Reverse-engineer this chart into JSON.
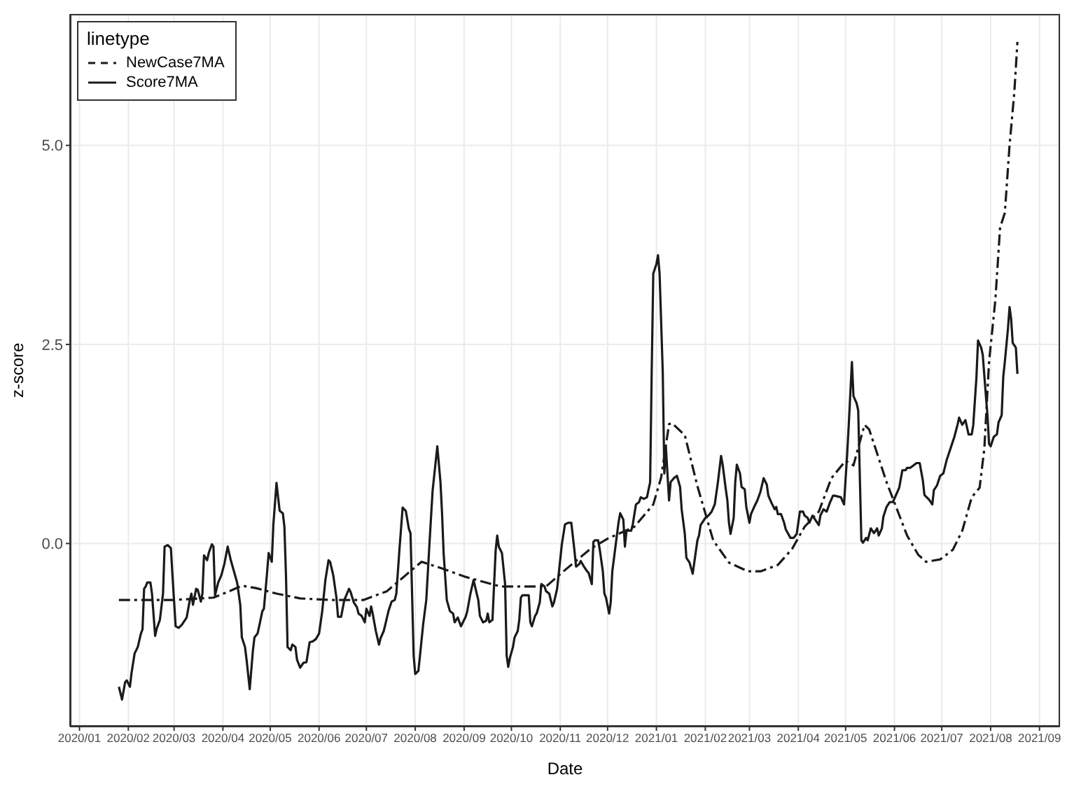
{
  "chart_data": {
    "type": "line",
    "xlabel": "Date",
    "ylabel": "z-score",
    "legend_title": "linetype",
    "legend": "top left",
    "grid": true,
    "marker": "none",
    "xlim": [
      "2019-12-26",
      "2021-09-14"
    ],
    "ylim": [
      -2.3,
      6.65
    ],
    "xticks": [
      {
        "value": "2020-01-01",
        "label": "2020/01"
      },
      {
        "value": "2020-02-01",
        "label": "2020/02"
      },
      {
        "value": "2020-03-01",
        "label": "2020/03"
      },
      {
        "value": "2020-04-01",
        "label": "2020/04"
      },
      {
        "value": "2020-05-01",
        "label": "2020/05"
      },
      {
        "value": "2020-06-01",
        "label": "2020/06"
      },
      {
        "value": "2020-07-01",
        "label": "2020/07"
      },
      {
        "value": "2020-08-01",
        "label": "2020/08"
      },
      {
        "value": "2020-09-01",
        "label": "2020/09"
      },
      {
        "value": "2020-10-01",
        "label": "2020/10"
      },
      {
        "value": "2020-11-01",
        "label": "2020/11"
      },
      {
        "value": "2020-12-01",
        "label": "2020/12"
      },
      {
        "value": "2021-01-01",
        "label": "2021/01"
      },
      {
        "value": "2021-02-01",
        "label": "2021/02"
      },
      {
        "value": "2021-03-01",
        "label": "2021/03"
      },
      {
        "value": "2021-04-01",
        "label": "2021/04"
      },
      {
        "value": "2021-05-01",
        "label": "2021/05"
      },
      {
        "value": "2021-06-01",
        "label": "2021/06"
      },
      {
        "value": "2021-07-01",
        "label": "2021/07"
      },
      {
        "value": "2021-08-01",
        "label": "2021/08"
      },
      {
        "value": "2021-09-01",
        "label": "2021/09"
      }
    ],
    "yticks": [
      {
        "value": 0,
        "label": "0.0"
      },
      {
        "value": 2.5,
        "label": "2.5"
      },
      {
        "value": 5,
        "label": "5.0"
      }
    ],
    "series": [
      {
        "name": "NewCase7MA",
        "color": "#1a1a1a",
        "line_style": "dashed",
        "x": [
          "2020-01-26",
          "2020-03-01",
          "2020-03-26",
          "2020-04-05",
          "2020-04-13",
          "2020-04-22",
          "2020-05-05",
          "2020-05-20",
          "2020-06-09",
          "2020-06-29",
          "2020-07-14",
          "2020-07-27",
          "2020-08-05",
          "2020-08-16",
          "2020-09-02",
          "2020-09-24",
          "2020-10-23",
          "2020-11-03",
          "2020-11-20",
          "2020-12-01",
          "2020-12-18",
          "2020-12-30",
          "2021-01-04",
          "2021-01-09",
          "2021-01-11",
          "2021-01-19",
          "2021-01-27",
          "2021-02-06",
          "2021-02-16",
          "2021-02-28",
          "2021-03-08",
          "2021-03-19",
          "2021-03-28",
          "2021-04-05",
          "2021-04-14",
          "2021-04-22",
          "2021-05-01",
          "2021-05-06",
          "2021-05-08",
          "2021-05-13",
          "2021-05-16",
          "2021-05-21",
          "2021-05-27",
          "2021-06-02",
          "2021-06-09",
          "2021-06-16",
          "2021-06-21",
          "2021-06-30",
          "2021-07-08",
          "2021-07-14",
          "2021-07-20",
          "2021-07-25",
          "2021-07-28",
          "2021-07-31",
          "2021-08-04",
          "2021-08-07",
          "2021-08-10",
          "2021-08-13",
          "2021-08-16",
          "2021-08-18"
        ],
        "values": [
          -0.71,
          -0.71,
          -0.68,
          -0.6,
          -0.53,
          -0.56,
          -0.63,
          -0.69,
          -0.71,
          -0.71,
          -0.6,
          -0.38,
          -0.23,
          -0.3,
          -0.42,
          -0.54,
          -0.54,
          -0.35,
          -0.07,
          0.06,
          0.21,
          0.49,
          0.83,
          1.5,
          1.51,
          1.36,
          0.72,
          0.04,
          -0.24,
          -0.35,
          -0.35,
          -0.27,
          -0.07,
          0.21,
          0.4,
          0.82,
          1.04,
          0.98,
          1.13,
          1.49,
          1.43,
          1.13,
          0.77,
          0.46,
          0.1,
          -0.14,
          -0.23,
          -0.2,
          -0.08,
          0.16,
          0.58,
          0.7,
          1.19,
          2.28,
          3.06,
          3.97,
          4.15,
          5.0,
          5.66,
          6.3
        ]
      },
      {
        "name": "Score7MA",
        "color": "#1a1a1a",
        "line_style": "solid",
        "x": [
          "2020-01-26",
          "2020-01-28",
          "2020-01-30",
          "2020-01-31",
          "2020-02-02",
          "2020-02-03",
          "2020-02-05",
          "2020-02-07",
          "2020-02-09",
          "2020-02-10",
          "2020-02-11",
          "2020-02-12",
          "2020-02-13",
          "2020-02-15",
          "2020-02-16",
          "2020-02-18",
          "2020-02-19",
          "2020-02-21",
          "2020-02-23",
          "2020-02-24",
          "2020-02-26",
          "2020-02-28",
          "2020-02-29",
          "2020-03-02",
          "2020-03-04",
          "2020-03-06",
          "2020-03-09",
          "2020-03-11",
          "2020-03-12",
          "2020-03-13",
          "2020-03-15",
          "2020-03-16",
          "2020-03-18",
          "2020-03-19",
          "2020-03-20",
          "2020-03-22",
          "2020-03-23",
          "2020-03-25",
          "2020-03-26",
          "2020-03-27",
          "2020-03-29",
          "2020-03-31",
          "2020-04-02",
          "2020-04-04",
          "2020-04-06",
          "2020-04-08",
          "2020-04-10",
          "2020-04-12",
          "2020-04-13",
          "2020-04-15",
          "2020-04-16",
          "2020-04-18",
          "2020-04-20",
          "2020-04-21",
          "2020-04-23",
          "2020-04-24",
          "2020-04-26",
          "2020-04-27",
          "2020-04-29",
          "2020-04-30",
          "2020-05-02",
          "2020-05-03",
          "2020-05-05",
          "2020-05-06",
          "2020-05-07",
          "2020-05-09",
          "2020-05-10",
          "2020-05-11",
          "2020-05-12",
          "2020-05-14",
          "2020-05-15",
          "2020-05-17",
          "2020-05-18",
          "2020-05-20",
          "2020-05-22",
          "2020-05-24",
          "2020-05-26",
          "2020-05-28",
          "2020-05-30",
          "2020-06-01",
          "2020-06-03",
          "2020-06-05",
          "2020-06-07",
          "2020-06-08",
          "2020-06-10",
          "2020-06-12",
          "2020-06-13",
          "2020-06-15",
          "2020-06-17",
          "2020-06-20",
          "2020-06-21",
          "2020-06-23",
          "2020-06-25",
          "2020-06-26",
          "2020-06-28",
          "2020-06-30",
          "2020-07-01",
          "2020-07-03",
          "2020-07-04",
          "2020-07-05",
          "2020-07-07",
          "2020-07-09",
          "2020-07-10",
          "2020-07-12",
          "2020-07-13",
          "2020-07-15",
          "2020-07-17",
          "2020-07-19",
          "2020-07-20",
          "2020-07-22",
          "2020-07-24",
          "2020-07-26",
          "2020-07-28",
          "2020-07-29",
          "2020-07-31",
          "2020-08-01",
          "2020-08-03",
          "2020-08-04",
          "2020-08-06",
          "2020-08-08",
          "2020-08-10",
          "2020-08-12",
          "2020-08-15",
          "2020-08-17",
          "2020-08-18",
          "2020-08-19",
          "2020-08-21",
          "2020-08-23",
          "2020-08-25",
          "2020-08-26",
          "2020-08-28",
          "2020-08-30",
          "2020-09-02",
          "2020-09-03",
          "2020-09-05",
          "2020-09-07",
          "2020-09-09",
          "2020-09-10",
          "2020-09-11",
          "2020-09-13",
          "2020-09-15",
          "2020-09-16",
          "2020-09-17",
          "2020-09-19",
          "2020-09-21",
          "2020-09-22",
          "2020-09-23",
          "2020-09-25",
          "2020-09-27",
          "2020-09-28",
          "2020-09-29",
          "2020-09-30",
          "2020-10-02",
          "2020-10-03",
          "2020-10-05",
          "2020-10-06",
          "2020-10-07",
          "2020-10-08",
          "2020-10-10",
          "2020-10-12",
          "2020-10-13",
          "2020-10-14",
          "2020-10-16",
          "2020-10-17",
          "2020-10-19",
          "2020-10-20",
          "2020-10-22",
          "2020-10-23",
          "2020-10-25",
          "2020-10-27",
          "2020-10-28",
          "2020-10-30",
          "2020-11-02",
          "2020-11-04",
          "2020-11-06",
          "2020-11-08",
          "2020-11-10",
          "2020-11-11",
          "2020-11-13",
          "2020-11-14",
          "2020-11-16",
          "2020-11-18",
          "2020-11-19",
          "2020-11-21",
          "2020-11-22",
          "2020-11-23",
          "2020-11-25",
          "2020-11-26",
          "2020-11-28",
          "2020-11-29",
          "2020-11-30",
          "2020-12-02",
          "2020-12-03",
          "2020-12-04",
          "2020-12-06",
          "2020-12-08",
          "2020-12-09",
          "2020-12-11",
          "2020-12-12",
          "2020-12-13",
          "2020-12-16",
          "2020-12-17",
          "2020-12-19",
          "2020-12-21",
          "2020-12-22",
          "2020-12-24",
          "2020-12-26",
          "2020-12-28",
          "2020-12-29",
          "2020-12-30",
          "2021-01-01",
          "2021-01-02",
          "2021-01-03",
          "2021-01-05",
          "2021-01-06",
          "2021-01-07",
          "2021-01-09",
          "2021-01-10",
          "2021-01-12",
          "2021-01-14",
          "2021-01-16",
          "2021-01-17",
          "2021-01-19",
          "2021-01-20",
          "2021-01-22",
          "2021-01-24",
          "2021-01-25",
          "2021-01-27",
          "2021-01-28",
          "2021-01-29",
          "2021-02-01",
          "2021-02-03",
          "2021-02-05",
          "2021-02-07",
          "2021-02-09",
          "2021-02-11",
          "2021-02-12",
          "2021-02-14",
          "2021-02-15",
          "2021-02-16",
          "2021-02-17",
          "2021-02-19",
          "2021-02-20",
          "2021-02-21",
          "2021-02-23",
          "2021-02-24",
          "2021-02-26",
          "2021-02-27",
          "2021-03-01",
          "2021-03-02",
          "2021-03-04",
          "2021-03-06",
          "2021-03-08",
          "2021-03-10",
          "2021-03-12",
          "2021-03-13",
          "2021-03-15",
          "2021-03-17",
          "2021-03-18",
          "2021-03-19",
          "2021-03-21",
          "2021-03-23",
          "2021-03-24",
          "2021-03-27",
          "2021-03-29",
          "2021-03-31",
          "2021-04-02",
          "2021-04-04",
          "2021-04-05",
          "2021-04-07",
          "2021-04-08",
          "2021-04-10",
          "2021-04-12",
          "2021-04-14",
          "2021-04-15",
          "2021-04-17",
          "2021-04-19",
          "2021-04-21",
          "2021-04-23",
          "2021-04-24",
          "2021-04-28",
          "2021-04-30",
          "2021-05-02",
          "2021-05-03",
          "2021-05-05",
          "2021-05-06",
          "2021-05-08",
          "2021-05-09",
          "2021-05-11",
          "2021-05-12",
          "2021-05-14",
          "2021-05-15",
          "2021-05-17",
          "2021-05-19",
          "2021-05-21",
          "2021-05-22",
          "2021-05-24",
          "2021-05-25",
          "2021-05-27",
          "2021-05-29",
          "2021-05-31",
          "2021-06-02",
          "2021-06-04",
          "2021-06-06",
          "2021-06-08",
          "2021-06-09",
          "2021-06-11",
          "2021-06-13",
          "2021-06-15",
          "2021-06-17",
          "2021-06-19",
          "2021-06-20",
          "2021-06-23",
          "2021-06-25",
          "2021-06-26",
          "2021-06-28",
          "2021-06-30",
          "2021-07-02",
          "2021-07-04",
          "2021-07-07",
          "2021-07-09",
          "2021-07-11",
          "2021-07-12",
          "2021-07-14",
          "2021-07-16",
          "2021-07-18",
          "2021-07-20",
          "2021-07-21",
          "2021-07-23",
          "2021-07-24",
          "2021-07-26",
          "2021-07-27",
          "2021-07-29",
          "2021-07-30",
          "2021-07-31",
          "2021-08-01",
          "2021-08-03",
          "2021-08-05",
          "2021-08-06",
          "2021-08-08",
          "2021-08-09",
          "2021-08-10",
          "2021-08-12",
          "2021-08-13",
          "2021-08-14",
          "2021-08-15",
          "2021-08-17",
          "2021-08-18"
        ],
        "values": [
          -1.8,
          -1.96,
          -1.74,
          -1.72,
          -1.8,
          -1.63,
          -1.38,
          -1.3,
          -1.13,
          -1.08,
          -0.57,
          -0.54,
          -0.49,
          -0.49,
          -0.63,
          -1.16,
          -1.07,
          -0.96,
          -0.63,
          -0.04,
          -0.02,
          -0.06,
          -0.4,
          -1.04,
          -1.06,
          -1.02,
          -0.93,
          -0.71,
          -0.63,
          -0.77,
          -0.57,
          -0.58,
          -0.73,
          -0.63,
          -0.15,
          -0.21,
          -0.12,
          -0.01,
          -0.04,
          -0.65,
          -0.49,
          -0.4,
          -0.25,
          -0.04,
          -0.21,
          -0.35,
          -0.49,
          -0.77,
          -1.18,
          -1.3,
          -1.46,
          -1.83,
          -1.35,
          -1.18,
          -1.13,
          -1.04,
          -0.85,
          -0.82,
          -0.37,
          -0.12,
          -0.23,
          0.24,
          0.76,
          0.58,
          0.41,
          0.38,
          0.21,
          -0.4,
          -1.3,
          -1.34,
          -1.27,
          -1.3,
          -1.46,
          -1.56,
          -1.5,
          -1.49,
          -1.24,
          -1.23,
          -1.2,
          -1.13,
          -0.85,
          -0.46,
          -0.21,
          -0.23,
          -0.4,
          -0.68,
          -0.92,
          -0.92,
          -0.71,
          -0.57,
          -0.61,
          -0.74,
          -0.8,
          -0.88,
          -0.91,
          -0.99,
          -0.82,
          -0.91,
          -0.79,
          -0.88,
          -1.1,
          -1.27,
          -1.19,
          -1.1,
          -1.02,
          -0.85,
          -0.73,
          -0.71,
          -0.63,
          -0.07,
          0.45,
          0.41,
          0.18,
          0.13,
          -1.41,
          -1.64,
          -1.6,
          -1.41,
          -1.02,
          -0.71,
          -0.01,
          0.66,
          1.22,
          0.77,
          0.38,
          -0.12,
          -0.71,
          -0.85,
          -0.88,
          -0.99,
          -0.93,
          -1.04,
          -0.92,
          -0.85,
          -0.63,
          -0.46,
          -0.63,
          -0.71,
          -0.91,
          -0.99,
          -0.97,
          -0.88,
          -0.99,
          -0.96,
          -0.09,
          0.1,
          -0.04,
          -0.12,
          -0.51,
          -1.41,
          -1.55,
          -1.44,
          -1.3,
          -1.18,
          -1.1,
          -0.96,
          -0.68,
          -0.65,
          -0.65,
          -0.65,
          -0.99,
          -1.04,
          -0.91,
          -0.88,
          -0.74,
          -0.51,
          -0.54,
          -0.6,
          -0.63,
          -0.79,
          -0.74,
          -0.57,
          -0.01,
          0.24,
          0.26,
          0.26,
          -0.09,
          -0.29,
          -0.26,
          -0.22,
          -0.29,
          -0.35,
          -0.37,
          -0.51,
          0.02,
          0.04,
          0.04,
          -0.07,
          -0.35,
          -0.63,
          -0.68,
          -0.88,
          -0.74,
          -0.35,
          -0.04,
          0.27,
          0.38,
          0.3,
          -0.04,
          0.16,
          0.16,
          0.24,
          0.49,
          0.52,
          0.58,
          0.56,
          0.58,
          0.77,
          2.16,
          3.39,
          3.51,
          3.62,
          3.39,
          2.16,
          0.88,
          1.21,
          0.54,
          0.77,
          0.82,
          0.85,
          0.71,
          0.43,
          0.12,
          -0.18,
          -0.24,
          -0.38,
          -0.24,
          0.04,
          0.1,
          0.23,
          0.32,
          0.35,
          0.4,
          0.49,
          0.77,
          1.1,
          0.99,
          0.68,
          0.54,
          0.26,
          0.12,
          0.32,
          0.77,
          0.99,
          0.88,
          0.71,
          0.68,
          0.46,
          0.26,
          0.37,
          0.46,
          0.54,
          0.65,
          0.82,
          0.74,
          0.6,
          0.51,
          0.43,
          0.46,
          0.37,
          0.37,
          0.26,
          0.18,
          0.07,
          0.07,
          0.12,
          0.4,
          0.4,
          0.35,
          0.32,
          0.26,
          0.35,
          0.29,
          0.23,
          0.35,
          0.43,
          0.4,
          0.51,
          0.6,
          0.6,
          0.58,
          0.49,
          1.13,
          1.49,
          2.28,
          1.85,
          1.76,
          1.67,
          0.04,
          0.01,
          0.07,
          0.04,
          0.19,
          0.13,
          0.19,
          0.1,
          0.19,
          0.34,
          0.46,
          0.52,
          0.52,
          0.61,
          0.7,
          0.92,
          0.92,
          0.95,
          0.95,
          0.98,
          1.01,
          1.01,
          0.79,
          0.61,
          0.55,
          0.49,
          0.67,
          0.73,
          0.85,
          0.88,
          1.04,
          1.22,
          1.34,
          1.49,
          1.58,
          1.49,
          1.55,
          1.37,
          1.37,
          1.49,
          2.09,
          2.55,
          2.46,
          2.37,
          1.85,
          1.61,
          1.25,
          1.22,
          1.34,
          1.37,
          1.52,
          1.61,
          2.09,
          2.28,
          2.7,
          2.97,
          2.82,
          2.52,
          2.46,
          2.13
        ]
      }
    ]
  }
}
